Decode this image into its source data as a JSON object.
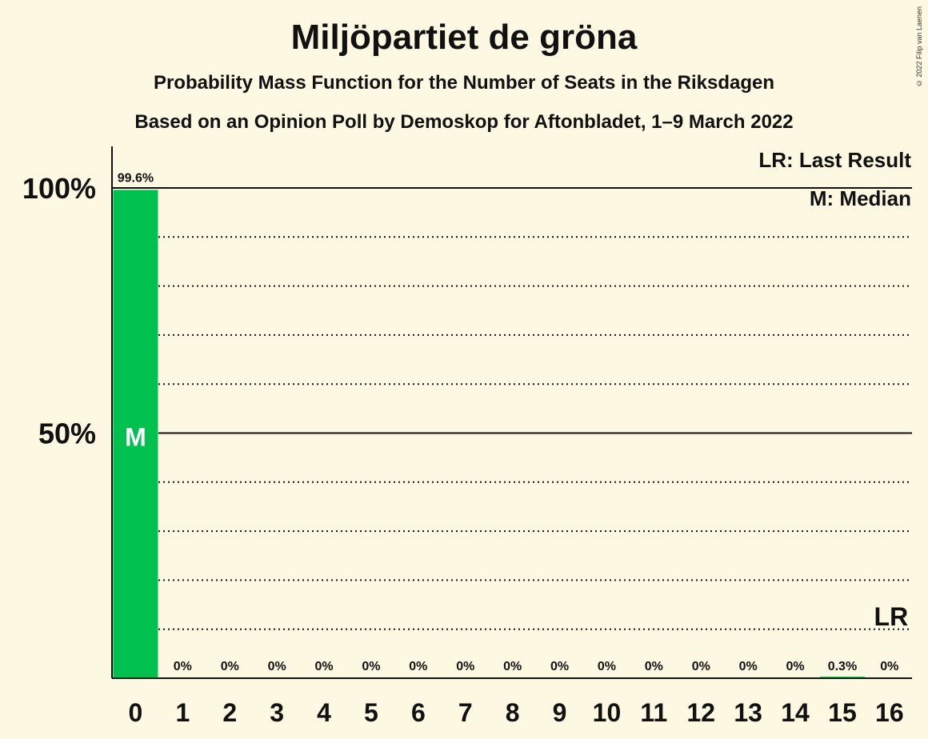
{
  "chart_data": {
    "type": "bar",
    "title": "Miljöpartiet de gröna",
    "subtitle": "Probability Mass Function for the Number of Seats in the Riksdagen",
    "subtitle2": "Based on an Opinion Poll by Demoskop for Aftonbladet, 1–9 March 2022",
    "copyright": "© 2022 Filip van Laenen",
    "categories": [
      "0",
      "1",
      "2",
      "3",
      "4",
      "5",
      "6",
      "7",
      "8",
      "9",
      "10",
      "11",
      "12",
      "13",
      "14",
      "15",
      "16"
    ],
    "values": [
      99.6,
      0,
      0,
      0,
      0,
      0,
      0,
      0,
      0,
      0,
      0,
      0,
      0,
      0,
      0,
      0.3,
      0
    ],
    "value_labels": [
      "99.6%",
      "0%",
      "0%",
      "0%",
      "0%",
      "0%",
      "0%",
      "0%",
      "0%",
      "0%",
      "0%",
      "0%",
      "0%",
      "0%",
      "0%",
      "0.3%",
      "0%"
    ],
    "ylim": [
      0,
      100
    ],
    "ytick_labels": [
      {
        "value": 50,
        "label": "50%"
      },
      {
        "value": 100,
        "label": "100%"
      }
    ],
    "gridlines": [
      10,
      20,
      30,
      40,
      60,
      70,
      80,
      90
    ],
    "median_index": 0,
    "median_label": "M",
    "last_result_index": 16,
    "last_result_label": "LR",
    "legend": [
      "LR: Last Result",
      "M: Median"
    ],
    "colors": {
      "bar": "#00c050",
      "background": "#fdf8e1",
      "text": "#111111"
    }
  }
}
